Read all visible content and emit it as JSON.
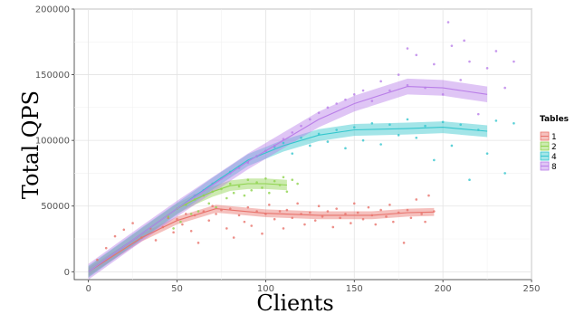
{
  "chart_data": {
    "type": "scatter",
    "title": "",
    "xlabel": "Clients",
    "ylabel": "Total QPS",
    "xlim": [
      -8,
      250
    ],
    "ylim": [
      -6000,
      200000
    ],
    "xticks": [
      0,
      50,
      100,
      150,
      200,
      250
    ],
    "yticks": [
      0,
      50000,
      100000,
      150000,
      200000
    ],
    "xtick_labels": [
      "0",
      "50",
      "100",
      "150",
      "200",
      "250"
    ],
    "ytick_labels": [
      "0",
      "50000",
      "100000",
      "150000",
      "200000"
    ],
    "grid": true,
    "legend": {
      "title": "Tables",
      "position": "right"
    },
    "series": [
      {
        "name": "1",
        "color": "#e8736c",
        "points": [
          [
            5,
            9000
          ],
          [
            10,
            18000
          ],
          [
            15,
            27000
          ],
          [
            20,
            32000
          ],
          [
            25,
            37000
          ],
          [
            30,
            26000
          ],
          [
            35,
            33000
          ],
          [
            38,
            24000
          ],
          [
            42,
            34000
          ],
          [
            45,
            41000
          ],
          [
            48,
            30000
          ],
          [
            50,
            40000
          ],
          [
            53,
            36000
          ],
          [
            55,
            44000
          ],
          [
            58,
            31000
          ],
          [
            60,
            43000
          ],
          [
            62,
            22000
          ],
          [
            65,
            46000
          ],
          [
            68,
            39000
          ],
          [
            70,
            50000
          ],
          [
            72,
            44000
          ],
          [
            75,
            47000
          ],
          [
            78,
            33000
          ],
          [
            80,
            48000
          ],
          [
            82,
            26000
          ],
          [
            85,
            43000
          ],
          [
            88,
            38000
          ],
          [
            90,
            49000
          ],
          [
            92,
            35000
          ],
          [
            95,
            46000
          ],
          [
            98,
            29000
          ],
          [
            100,
            44000
          ],
          [
            102,
            51000
          ],
          [
            105,
            40000
          ],
          [
            108,
            46000
          ],
          [
            110,
            33000
          ],
          [
            112,
            47000
          ],
          [
            115,
            41000
          ],
          [
            118,
            52000
          ],
          [
            120,
            44000
          ],
          [
            122,
            36000
          ],
          [
            125,
            45000
          ],
          [
            128,
            39000
          ],
          [
            130,
            50000
          ],
          [
            132,
            42000
          ],
          [
            135,
            46000
          ],
          [
            138,
            34000
          ],
          [
            140,
            48000
          ],
          [
            142,
            41000
          ],
          [
            145,
            44000
          ],
          [
            148,
            37000
          ],
          [
            150,
            52000
          ],
          [
            152,
            45000
          ],
          [
            155,
            40000
          ],
          [
            158,
            49000
          ],
          [
            160,
            43000
          ],
          [
            162,
            36000
          ],
          [
            165,
            47000
          ],
          [
            168,
            42000
          ],
          [
            170,
            51000
          ],
          [
            172,
            38000
          ],
          [
            175,
            45000
          ],
          [
            178,
            22000
          ],
          [
            180,
            47000
          ],
          [
            182,
            41000
          ],
          [
            185,
            55000
          ],
          [
            188,
            44000
          ],
          [
            190,
            38000
          ],
          [
            192,
            58000
          ],
          [
            195,
            46000
          ]
        ],
        "trend_x": [
          0,
          30,
          50,
          72,
          100,
          130,
          160,
          180,
          195
        ],
        "trend_y": [
          0,
          26000,
          39000,
          48000,
          44500,
          43000,
          43000,
          45000,
          45500
        ],
        "band": 3000
      },
      {
        "name": "2",
        "color": "#8ed34e",
        "points": [
          [
            45,
            42000
          ],
          [
            48,
            33000
          ],
          [
            50,
            48000
          ],
          [
            52,
            38000
          ],
          [
            55,
            51000
          ],
          [
            58,
            44000
          ],
          [
            60,
            55000
          ],
          [
            62,
            46000
          ],
          [
            65,
            58000
          ],
          [
            68,
            52000
          ],
          [
            70,
            61000
          ],
          [
            72,
            49000
          ],
          [
            75,
            63000
          ],
          [
            78,
            56000
          ],
          [
            80,
            67000
          ],
          [
            82,
            60000
          ],
          [
            85,
            65000
          ],
          [
            88,
            58000
          ],
          [
            90,
            70000
          ],
          [
            92,
            62000
          ],
          [
            95,
            68000
          ],
          [
            98,
            64000
          ],
          [
            100,
            71000
          ],
          [
            102,
            60000
          ],
          [
            105,
            69000
          ],
          [
            108,
            66000
          ],
          [
            110,
            72000
          ],
          [
            112,
            61000
          ],
          [
            115,
            70000
          ],
          [
            118,
            67000
          ]
        ],
        "trend_x": [
          0,
          30,
          50,
          60,
          70,
          80,
          90,
          100,
          112
        ],
        "trend_y": [
          0,
          29000,
          48000,
          55000,
          61000,
          65500,
          67000,
          67000,
          66000
        ],
        "band": 4000
      },
      {
        "name": "4",
        "color": "#33c6cd",
        "points": [
          [
            60,
            58000
          ],
          [
            65,
            62000
          ],
          [
            70,
            67000
          ],
          [
            75,
            71000
          ],
          [
            80,
            76000
          ],
          [
            85,
            80000
          ],
          [
            90,
            84000
          ],
          [
            95,
            88000
          ],
          [
            100,
            92000
          ],
          [
            105,
            95000
          ],
          [
            110,
            98000
          ],
          [
            115,
            90000
          ],
          [
            120,
            102000
          ],
          [
            125,
            96000
          ],
          [
            130,
            105000
          ],
          [
            135,
            99000
          ],
          [
            140,
            108000
          ],
          [
            145,
            94000
          ],
          [
            150,
            110000
          ],
          [
            155,
            100000
          ],
          [
            160,
            113000
          ],
          [
            165,
            97000
          ],
          [
            170,
            112000
          ],
          [
            175,
            104000
          ],
          [
            180,
            116000
          ],
          [
            185,
            102000
          ],
          [
            190,
            111000
          ],
          [
            195,
            85000
          ],
          [
            200,
            114000
          ],
          [
            205,
            96000
          ],
          [
            210,
            112000
          ],
          [
            215,
            70000
          ],
          [
            220,
            108000
          ],
          [
            225,
            90000
          ],
          [
            230,
            115000
          ],
          [
            235,
            75000
          ],
          [
            240,
            113000
          ]
        ],
        "trend_x": [
          0,
          30,
          50,
          70,
          90,
          110,
          130,
          150,
          180,
          200,
          225
        ],
        "trend_y": [
          0,
          29000,
          48000,
          67000,
          85000,
          96000,
          104000,
          108000,
          109000,
          110000,
          107000
        ],
        "band": 4500
      },
      {
        "name": "8",
        "color": "#b97ee8",
        "points": [
          [
            60,
            58000
          ],
          [
            65,
            62000
          ],
          [
            70,
            67000
          ],
          [
            75,
            71000
          ],
          [
            80,
            75000
          ],
          [
            85,
            79000
          ],
          [
            90,
            83000
          ],
          [
            95,
            88000
          ],
          [
            100,
            92000
          ],
          [
            105,
            96000
          ],
          [
            110,
            101000
          ],
          [
            115,
            106000
          ],
          [
            120,
            111000
          ],
          [
            125,
            116000
          ],
          [
            130,
            121000
          ],
          [
            135,
            125000
          ],
          [
            140,
            128000
          ],
          [
            145,
            131000
          ],
          [
            150,
            135000
          ],
          [
            155,
            138000
          ],
          [
            160,
            130000
          ],
          [
            165,
            145000
          ],
          [
            170,
            138000
          ],
          [
            175,
            150000
          ],
          [
            180,
            142000
          ],
          [
            185,
            165000
          ],
          [
            190,
            140000
          ],
          [
            195,
            158000
          ],
          [
            200,
            135000
          ],
          [
            205,
            172000
          ],
          [
            210,
            146000
          ],
          [
            215,
            160000
          ],
          [
            220,
            120000
          ],
          [
            225,
            155000
          ],
          [
            230,
            168000
          ],
          [
            235,
            140000
          ],
          [
            240,
            160000
          ],
          [
            203,
            190000
          ],
          [
            212,
            176000
          ],
          [
            180,
            170000
          ]
        ],
        "trend_x": [
          0,
          30,
          50,
          70,
          90,
          110,
          130,
          150,
          180,
          200,
          225
        ],
        "trend_y": [
          0,
          29000,
          48000,
          66000,
          84000,
          100000,
          116000,
          128000,
          141000,
          140000,
          135000
        ],
        "band": 6000
      }
    ]
  }
}
